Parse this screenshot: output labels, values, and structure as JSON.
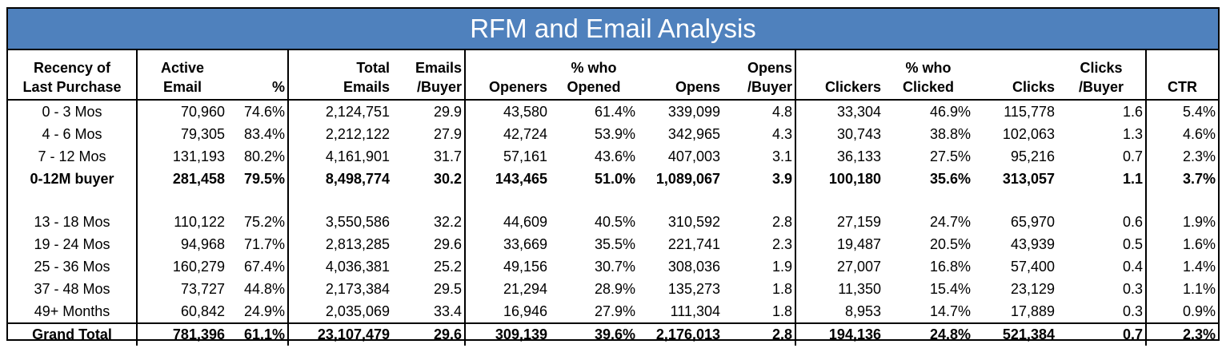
{
  "title": "RFM and Email Analysis",
  "headers": {
    "recency": [
      "Recency of",
      "Last Purchase"
    ],
    "active": [
      "Active",
      "Email"
    ],
    "pct": [
      "",
      "%"
    ],
    "total_emails": [
      "Total",
      "Emails"
    ],
    "emails_buyer": [
      "Emails",
      "/Buyer"
    ],
    "openers": [
      "",
      "Openers"
    ],
    "pct_opened": [
      "% who",
      "Opened"
    ],
    "opens": [
      "",
      "Opens"
    ],
    "opens_buyer": [
      "Opens",
      "/Buyer"
    ],
    "clickers": [
      "",
      "Clickers"
    ],
    "pct_clicked": [
      "% who",
      "Clicked"
    ],
    "clicks": [
      "",
      "Clicks"
    ],
    "clicks_buyer": [
      "Clicks",
      "/Buyer"
    ],
    "ctr": [
      "",
      "CTR"
    ]
  },
  "rows": [
    [
      "0 - 3 Mos",
      "70,960",
      "74.6%",
      "2,124,751",
      "29.9",
      "43,580",
      "61.4%",
      "339,099",
      "4.8",
      "33,304",
      "46.9%",
      "115,778",
      "1.6",
      "5.4%"
    ],
    [
      "4 - 6 Mos",
      "79,305",
      "83.4%",
      "2,212,122",
      "27.9",
      "42,724",
      "53.9%",
      "342,965",
      "4.3",
      "30,743",
      "38.8%",
      "102,063",
      "1.3",
      "4.6%"
    ],
    [
      "7 - 12 Mos",
      "131,193",
      "80.2%",
      "4,161,901",
      "31.7",
      "57,161",
      "43.6%",
      "407,003",
      "3.1",
      "36,133",
      "27.5%",
      "95,216",
      "0.7",
      "2.3%"
    ],
    [
      "0-12M buyer",
      "281,458",
      "79.5%",
      "8,498,774",
      "30.2",
      "143,465",
      "51.0%",
      "1,089,067",
      "3.9",
      "100,180",
      "35.6%",
      "313,057",
      "1.1",
      "3.7%"
    ],
    [
      "13 - 18 Mos",
      "110,122",
      "75.2%",
      "3,550,586",
      "32.2",
      "44,609",
      "40.5%",
      "310,592",
      "2.8",
      "27,159",
      "24.7%",
      "65,970",
      "0.6",
      "1.9%"
    ],
    [
      "19 - 24 Mos",
      "94,968",
      "71.7%",
      "2,813,285",
      "29.6",
      "33,669",
      "35.5%",
      "221,741",
      "2.3",
      "19,487",
      "20.5%",
      "43,939",
      "0.5",
      "1.6%"
    ],
    [
      "25 - 36 Mos",
      "160,279",
      "67.4%",
      "4,036,381",
      "25.2",
      "49,156",
      "30.7%",
      "308,036",
      "1.9",
      "27,007",
      "16.8%",
      "57,400",
      "0.4",
      "1.4%"
    ],
    [
      "37 - 48 Mos",
      "73,727",
      "44.8%",
      "2,173,384",
      "29.5",
      "21,294",
      "28.9%",
      "135,273",
      "1.8",
      "11,350",
      "15.4%",
      "23,129",
      "0.3",
      "1.1%"
    ],
    [
      "49+ Months",
      "60,842",
      "24.9%",
      "2,035,069",
      "33.4",
      "16,946",
      "27.9%",
      "111,304",
      "1.8",
      "8,953",
      "14.7%",
      "17,889",
      "0.3",
      "0.9%"
    ],
    [
      "Grand Total",
      "781,396",
      "61.1%",
      "23,107,479",
      "29.6",
      "309,139",
      "39.6%",
      "2,176,013",
      "2.8",
      "194,136",
      "24.8%",
      "521,384",
      "0.7",
      "2.3%"
    ]
  ]
}
